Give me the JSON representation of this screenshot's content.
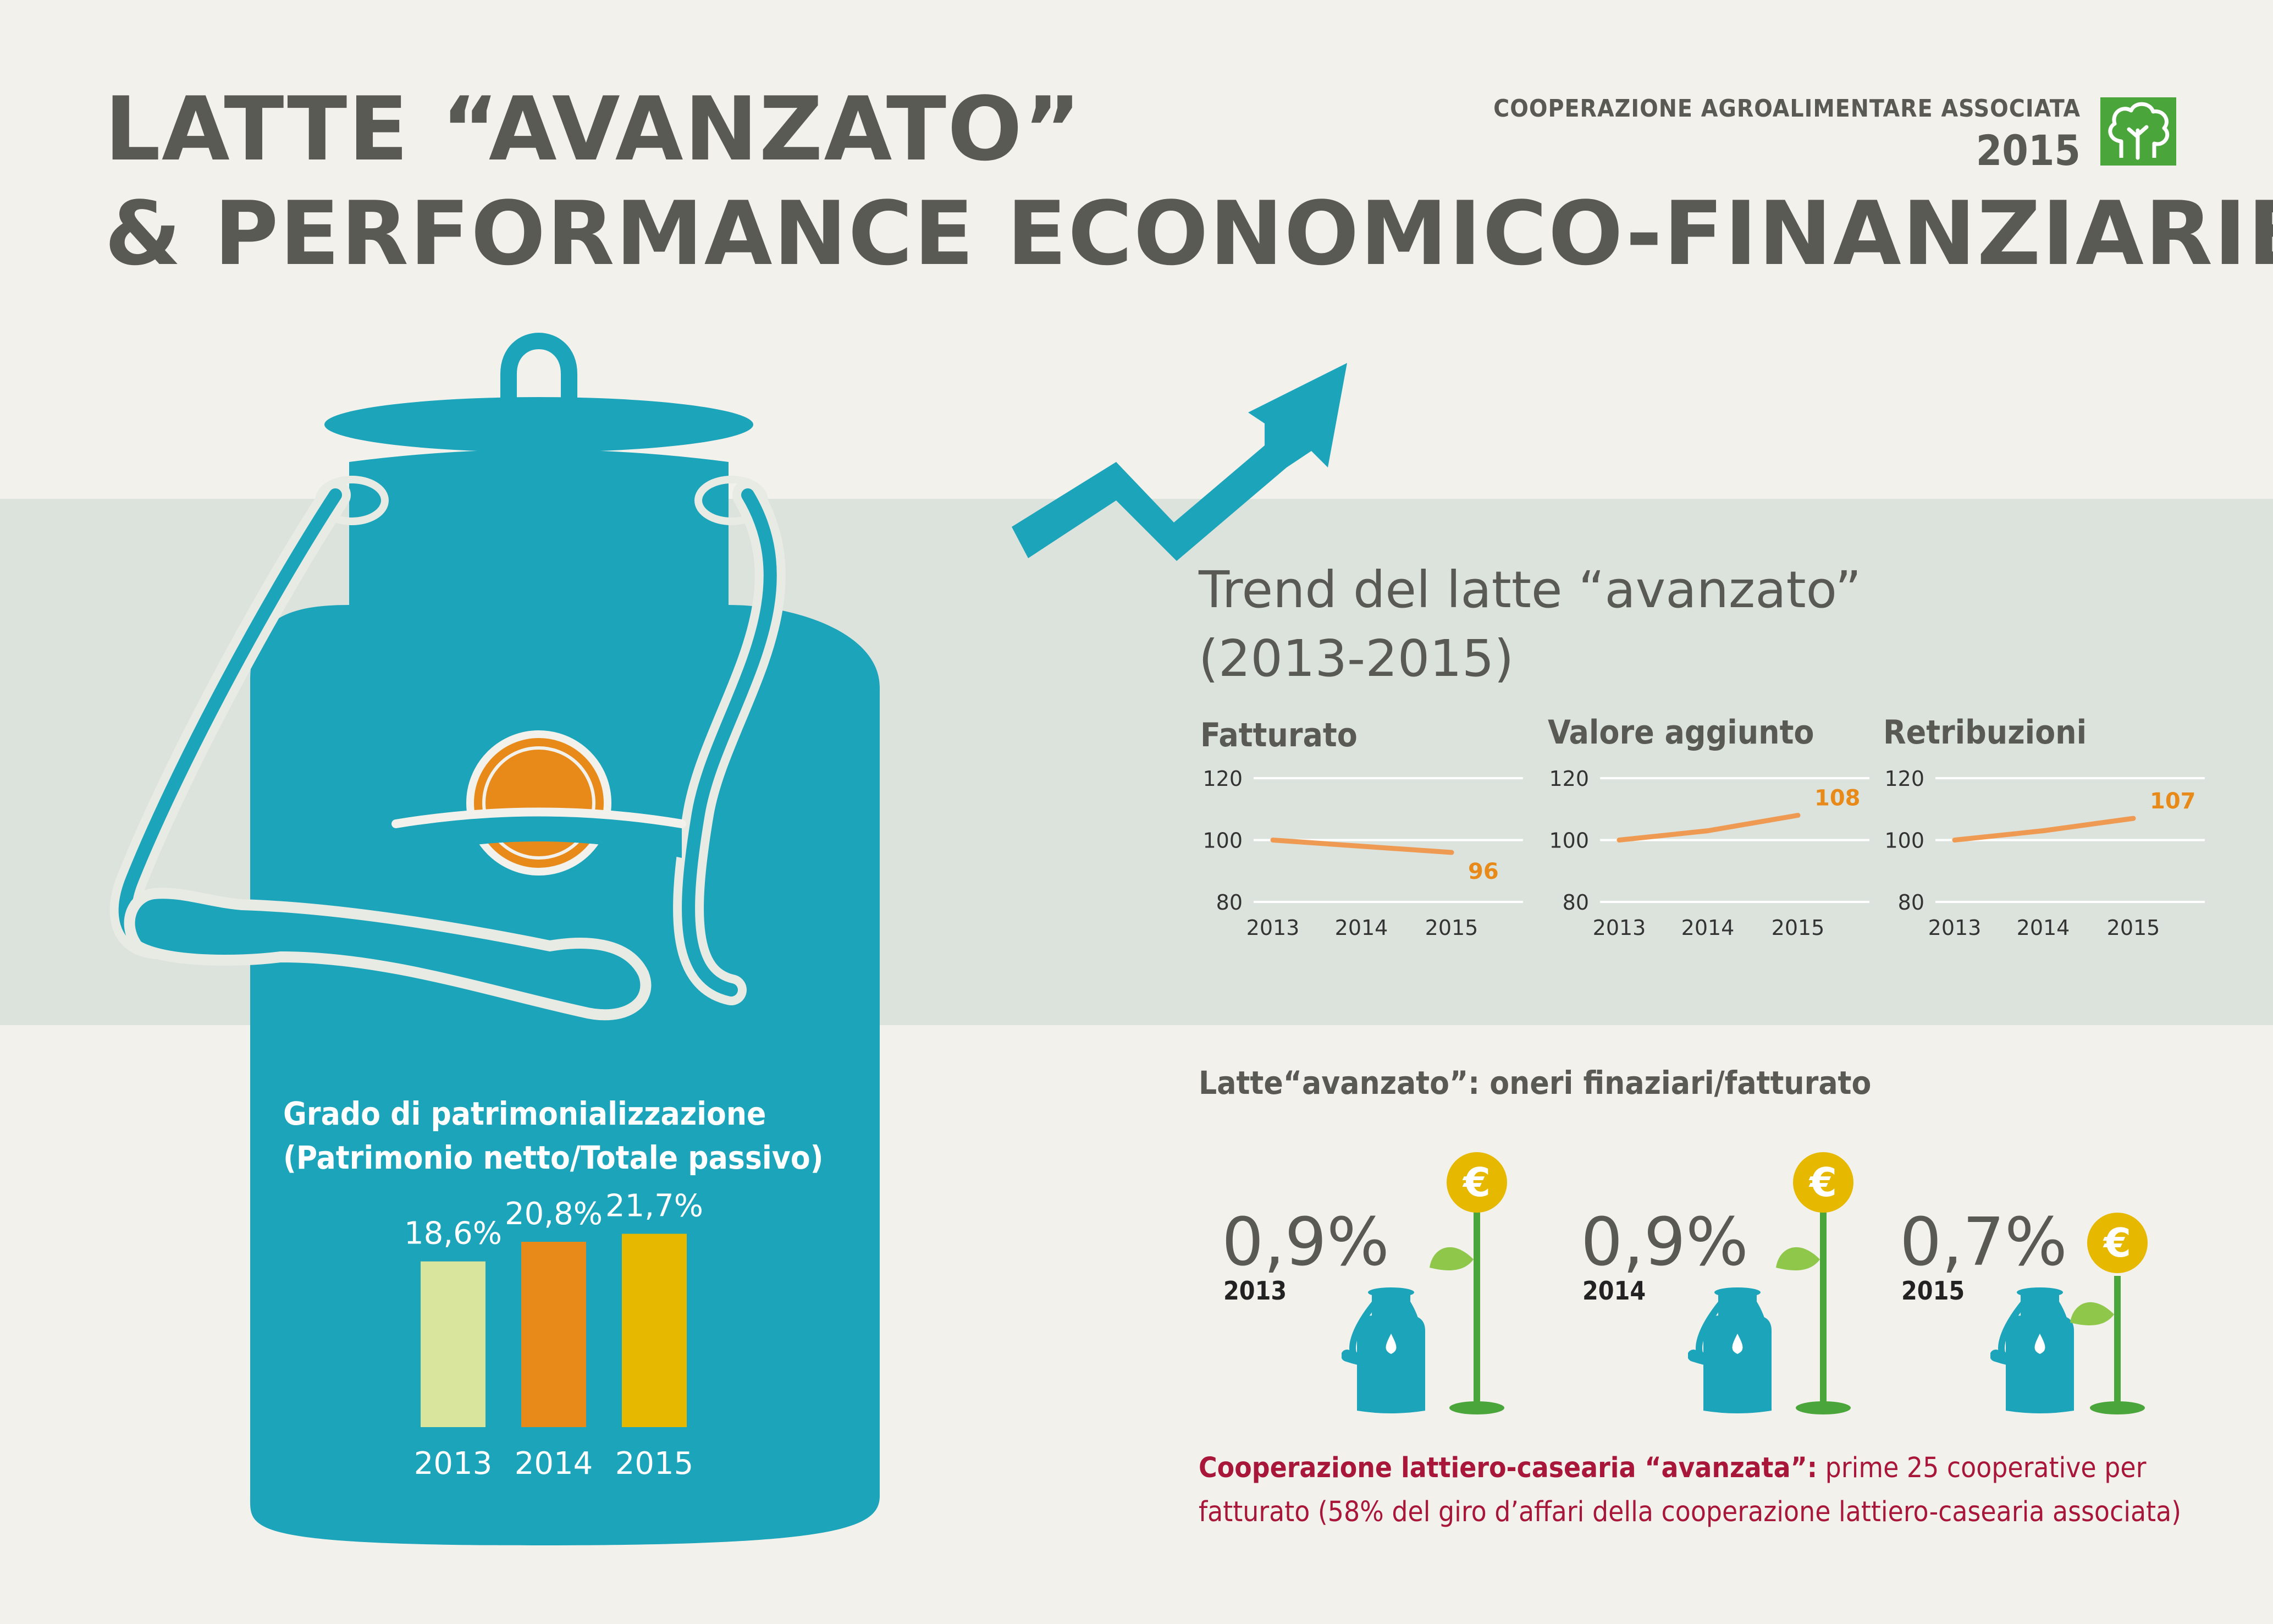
{
  "header": {
    "title_line1": "LATTE “AVANZATO”",
    "title_line2": "& PERFORMANCE ECONOMICO-FINANZIARIE",
    "org_name": "COOPERAZIONE AGROALIMENTARE ASSOCIATA",
    "org_year": "2015",
    "logo_icon": "tree-logo-icon"
  },
  "colors": {
    "teal": "#1ca4ba",
    "orange": "#e88a1a",
    "trend_line": "#ef9a52",
    "gold": "#e6b800",
    "pale_green": "#d9e49c",
    "leaf_green": "#4aa53b",
    "text_gray": "#5a5a55",
    "dark_red": "#a8173a"
  },
  "trend": {
    "title_line1": "Trend del latte “avanzato”",
    "title_line2": "(2013-2015)"
  },
  "capitalization": {
    "label_line1": "Grado di patrimonializzazione",
    "label_line2": "(Patrimonio netto/Totale passivo)"
  },
  "oneri": {
    "title": "Latte“avanzato”: oneri finaziari/fatturato",
    "items": [
      {
        "value": "0,9%",
        "year": "2013"
      },
      {
        "value": "0,9%",
        "year": "2014"
      },
      {
        "value": "0,7%",
        "year": "2015"
      }
    ]
  },
  "footnote": {
    "bold": "Cooperazione lattiero-casearia “avanzata”:",
    "text": " prime 25 cooperative per fatturato (58% del giro d’affari della cooperazione lattiero-casearia associata)"
  },
  "chart_data": [
    {
      "type": "line",
      "title": "Fatturato",
      "x": [
        "2013",
        "2014",
        "2015"
      ],
      "y": [
        100,
        98,
        96
      ],
      "y_ticks": [
        "120",
        "100",
        "80"
      ],
      "ylim": [
        80,
        120
      ],
      "last_label": "96",
      "grid": true
    },
    {
      "type": "line",
      "title": "Valore aggiunto",
      "x": [
        "2013",
        "2014",
        "2015"
      ],
      "y": [
        100,
        103,
        108
      ],
      "y_ticks": [
        "120",
        "100",
        "80"
      ],
      "ylim": [
        80,
        120
      ],
      "last_label": "108",
      "grid": true
    },
    {
      "type": "line",
      "title": "Retribuzioni",
      "x": [
        "2013",
        "2014",
        "2015"
      ],
      "y": [
        100,
        103,
        107
      ],
      "y_ticks": [
        "120",
        "100",
        "80"
      ],
      "ylim": [
        80,
        120
      ],
      "last_label": "107",
      "grid": true
    },
    {
      "type": "bar",
      "categories": [
        "2013",
        "2014",
        "2015"
      ],
      "values": [
        18.6,
        20.8,
        21.7
      ],
      "labels": [
        "18,6%",
        "20,8%",
        "21,7%"
      ],
      "colors": [
        "#d9e49c",
        "#e88a1a",
        "#e6b800"
      ]
    }
  ]
}
